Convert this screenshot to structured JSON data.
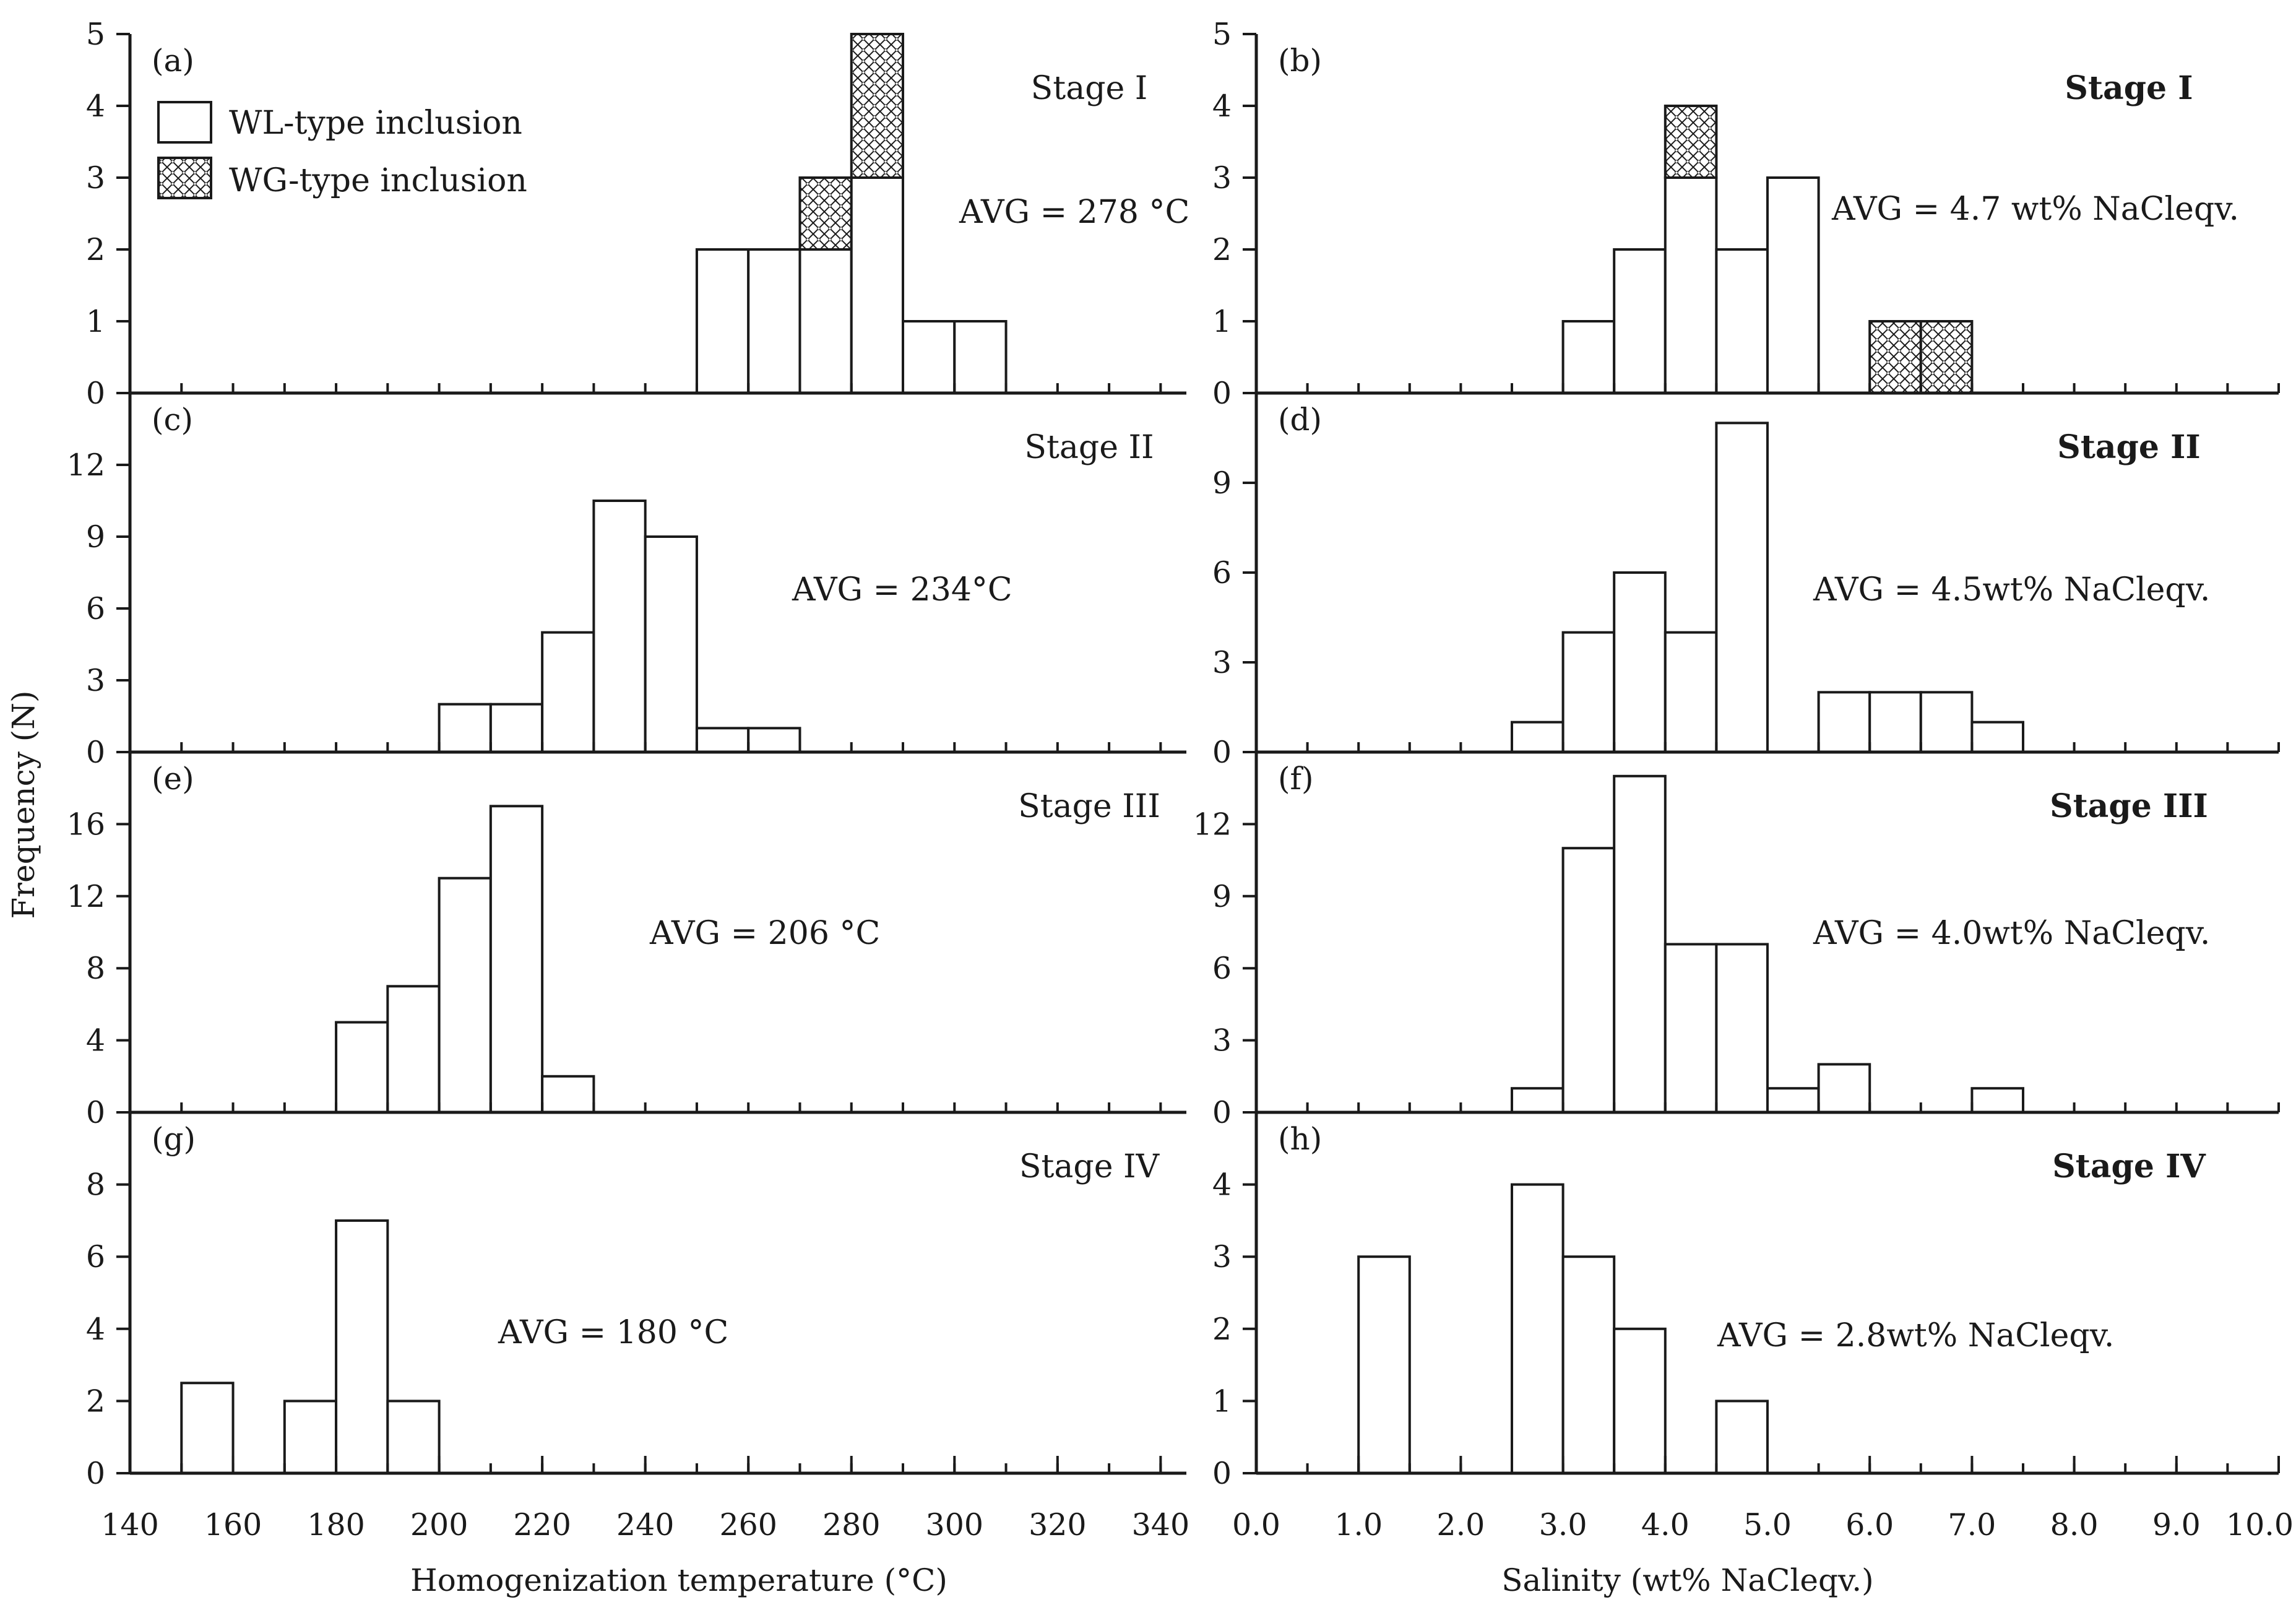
{
  "legend": {
    "wl_label": "WL-type inclusion",
    "wg_label": "WG-type inclusion"
  },
  "axes": {
    "ylabel": "Frequency (N)",
    "left_xlabel": "Homogenization temperature (°C)",
    "right_xlabel": "Salinity (wt% NaCleqv.)",
    "left_xticks": [
      "140",
      "160",
      "180",
      "200",
      "220",
      "240",
      "260",
      "280",
      "300",
      "320",
      "340"
    ],
    "right_xticks": [
      "0.0",
      "1.0",
      "2.0",
      "3.0",
      "4.0",
      "5.0",
      "6.0",
      "7.0",
      "8.0",
      "9.0",
      "10.0"
    ]
  },
  "chart_data": [
    {
      "id": "a",
      "panel_label": "(a)",
      "stage": "Stage I",
      "avg": "AVG =  278 °C",
      "type": "bar",
      "column": "left",
      "row": 0,
      "xlim": [
        140,
        345
      ],
      "bin_width": 10,
      "ylim": [
        0,
        5
      ],
      "yticks": [
        "0",
        "1",
        "2",
        "3",
        "4",
        "5"
      ],
      "bins": [
        250,
        260,
        270,
        280,
        290,
        300
      ],
      "series": [
        {
          "name": "WL-type inclusion",
          "values": [
            2,
            2,
            2,
            3,
            1,
            1
          ]
        },
        {
          "name": "WG-type inclusion",
          "values": [
            0,
            0,
            1,
            2,
            0,
            0
          ]
        }
      ]
    },
    {
      "id": "b",
      "panel_label": "(b)",
      "stage": "Stage I",
      "avg": "AVG = 4.7 wt% NaCleqv.",
      "type": "bar",
      "column": "right",
      "row": 0,
      "xlim": [
        0,
        10
      ],
      "bin_width": 0.5,
      "ylim": [
        0,
        5
      ],
      "yticks": [
        "0",
        "1",
        "2",
        "3",
        "4",
        "5"
      ],
      "bins": [
        3.0,
        3.5,
        4.0,
        4.5,
        5.0,
        6.0,
        6.5
      ],
      "series": [
        {
          "name": "WL-type inclusion",
          "values": [
            1,
            2,
            3,
            2,
            3,
            0,
            0
          ]
        },
        {
          "name": "WG-type inclusion",
          "values": [
            0,
            0,
            1,
            0,
            0,
            1,
            1
          ]
        }
      ]
    },
    {
      "id": "c",
      "panel_label": "(c)",
      "stage": "Stage II",
      "avg": "AVG = 234°C",
      "type": "bar",
      "column": "left",
      "row": 1,
      "xlim": [
        140,
        345
      ],
      "bin_width": 10,
      "ylim": [
        0,
        15
      ],
      "yticks": [
        "0",
        "3",
        "6",
        "9",
        "12"
      ],
      "bins": [
        200,
        210,
        220,
        230,
        240,
        250,
        260
      ],
      "series": [
        {
          "name": "WL-type inclusion",
          "values": [
            2,
            2,
            5,
            10.5,
            9,
            1,
            1
          ]
        }
      ]
    },
    {
      "id": "d",
      "panel_label": "(d)",
      "stage": "Stage II",
      "avg": "AVG = 4.5wt% NaCleqv.",
      "type": "bar",
      "column": "right",
      "row": 1,
      "xlim": [
        0,
        10
      ],
      "bin_width": 0.5,
      "ylim": [
        0,
        12
      ],
      "yticks": [
        "0",
        "3",
        "6",
        "9"
      ],
      "bins": [
        2.5,
        3.0,
        3.5,
        4.0,
        4.5,
        5.5,
        6.0,
        6.5,
        7.0
      ],
      "series": [
        {
          "name": "WL-type inclusion",
          "values": [
            1,
            4,
            6,
            4,
            11,
            2,
            2,
            2,
            1
          ]
        }
      ]
    },
    {
      "id": "e",
      "panel_label": "(e)",
      "stage": "Stage III",
      "avg": "AVG = 206 °C",
      "type": "bar",
      "column": "left",
      "row": 2,
      "xlim": [
        140,
        345
      ],
      "bin_width": 10,
      "ylim": [
        0,
        20
      ],
      "yticks": [
        "0",
        "4",
        "8",
        "12",
        "16"
      ],
      "bins": [
        180,
        190,
        200,
        210,
        220
      ],
      "series": [
        {
          "name": "WL-type inclusion",
          "values": [
            5,
            7,
            13,
            17,
            2
          ]
        }
      ]
    },
    {
      "id": "f",
      "panel_label": "(f)",
      "stage": "Stage III",
      "avg": "AVG = 4.0wt% NaCleqv.",
      "type": "bar",
      "column": "right",
      "row": 2,
      "xlim": [
        0,
        10
      ],
      "bin_width": 0.5,
      "ylim": [
        0,
        15
      ],
      "yticks": [
        "0",
        "3",
        "6",
        "9",
        "12"
      ],
      "bins": [
        2.5,
        3.0,
        3.5,
        4.0,
        4.5,
        5.0,
        5.5,
        7.0
      ],
      "series": [
        {
          "name": "WL-type inclusion",
          "values": [
            1,
            11,
            14,
            7,
            7,
            1,
            2,
            1
          ]
        }
      ]
    },
    {
      "id": "g",
      "panel_label": "(g)",
      "stage": "Stage IV",
      "avg": "AVG = 180 °C",
      "type": "bar",
      "column": "left",
      "row": 3,
      "xlim": [
        140,
        345
      ],
      "bin_width": 10,
      "ylim": [
        0,
        10
      ],
      "yticks": [
        "0",
        "2",
        "4",
        "6",
        "8"
      ],
      "bins": [
        150,
        170,
        180,
        190
      ],
      "series": [
        {
          "name": "WL-type inclusion",
          "values": [
            2.5,
            2,
            7,
            2
          ]
        }
      ]
    },
    {
      "id": "h",
      "panel_label": "(h)",
      "stage": "Stage IV",
      "avg": "AVG = 2.8wt% NaCleqv.",
      "type": "bar",
      "column": "right",
      "row": 3,
      "xlim": [
        0,
        10
      ],
      "bin_width": 0.5,
      "ylim": [
        0,
        5
      ],
      "yticks": [
        "0",
        "1",
        "2",
        "3",
        "4"
      ],
      "bins": [
        1.0,
        2.5,
        3.0,
        3.5,
        4.5
      ],
      "series": [
        {
          "name": "WL-type inclusion",
          "values": [
            3,
            4,
            3,
            2,
            1
          ]
        }
      ]
    }
  ]
}
